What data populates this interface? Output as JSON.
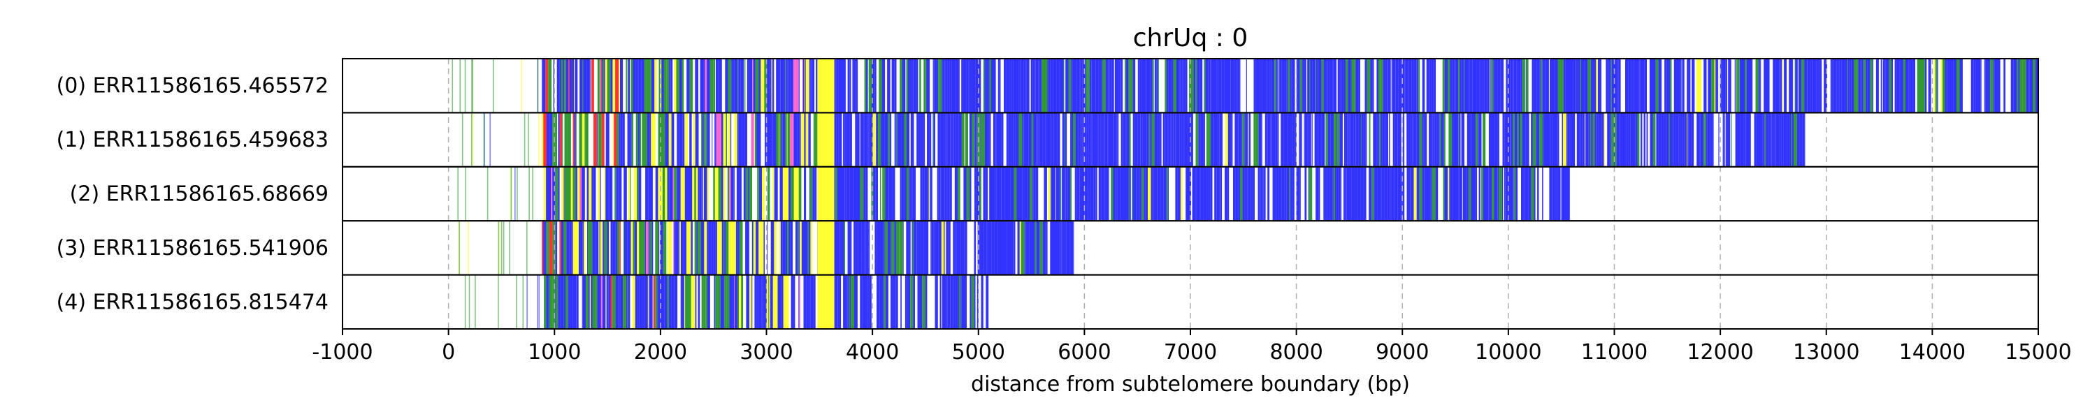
{
  "chart_data": {
    "type": "heatmap",
    "title": "chrUq : 0",
    "xlabel": "distance from subtelomere boundary (bp)",
    "ylabel": "",
    "xlim": [
      -1000,
      15000
    ],
    "x_ticks": [
      -1000,
      0,
      1000,
      2000,
      3000,
      4000,
      5000,
      6000,
      7000,
      8000,
      9000,
      10000,
      11000,
      12000,
      13000,
      14000,
      15000
    ],
    "x_tick_labels": [
      "-1000",
      "0",
      "1000",
      "2000",
      "3000",
      "4000",
      "5000",
      "6000",
      "7000",
      "8000",
      "9000",
      "10000",
      "11000",
      "12000",
      "13000",
      "14000",
      "15000"
    ],
    "grid": "vertical dashed",
    "reads": [
      {
        "label": "(0) ERR11586165.465572",
        "start": 0,
        "dense_start": 880,
        "end": 15000
      },
      {
        "label": "(1) ERR11586165.459683",
        "start": 0,
        "dense_start": 880,
        "end": 12800
      },
      {
        "label": "(2) ERR11586165.68669",
        "start": 50,
        "dense_start": 880,
        "end": 10580
      },
      {
        "label": "(3) ERR11586165.541906",
        "start": 50,
        "dense_start": 880,
        "end": 5900
      },
      {
        "label": "(4) ERR11586165.815474",
        "start": 50,
        "dense_start": 900,
        "end": 5120
      }
    ],
    "yellow_block": [
      3480,
      3640
    ],
    "colors": {
      "blue": "#3333ff",
      "green": "#339933",
      "yellow": "#ffff33",
      "red": "#ff3333",
      "pink": "#ff66cc",
      "grid": "#b0b0b0"
    }
  }
}
